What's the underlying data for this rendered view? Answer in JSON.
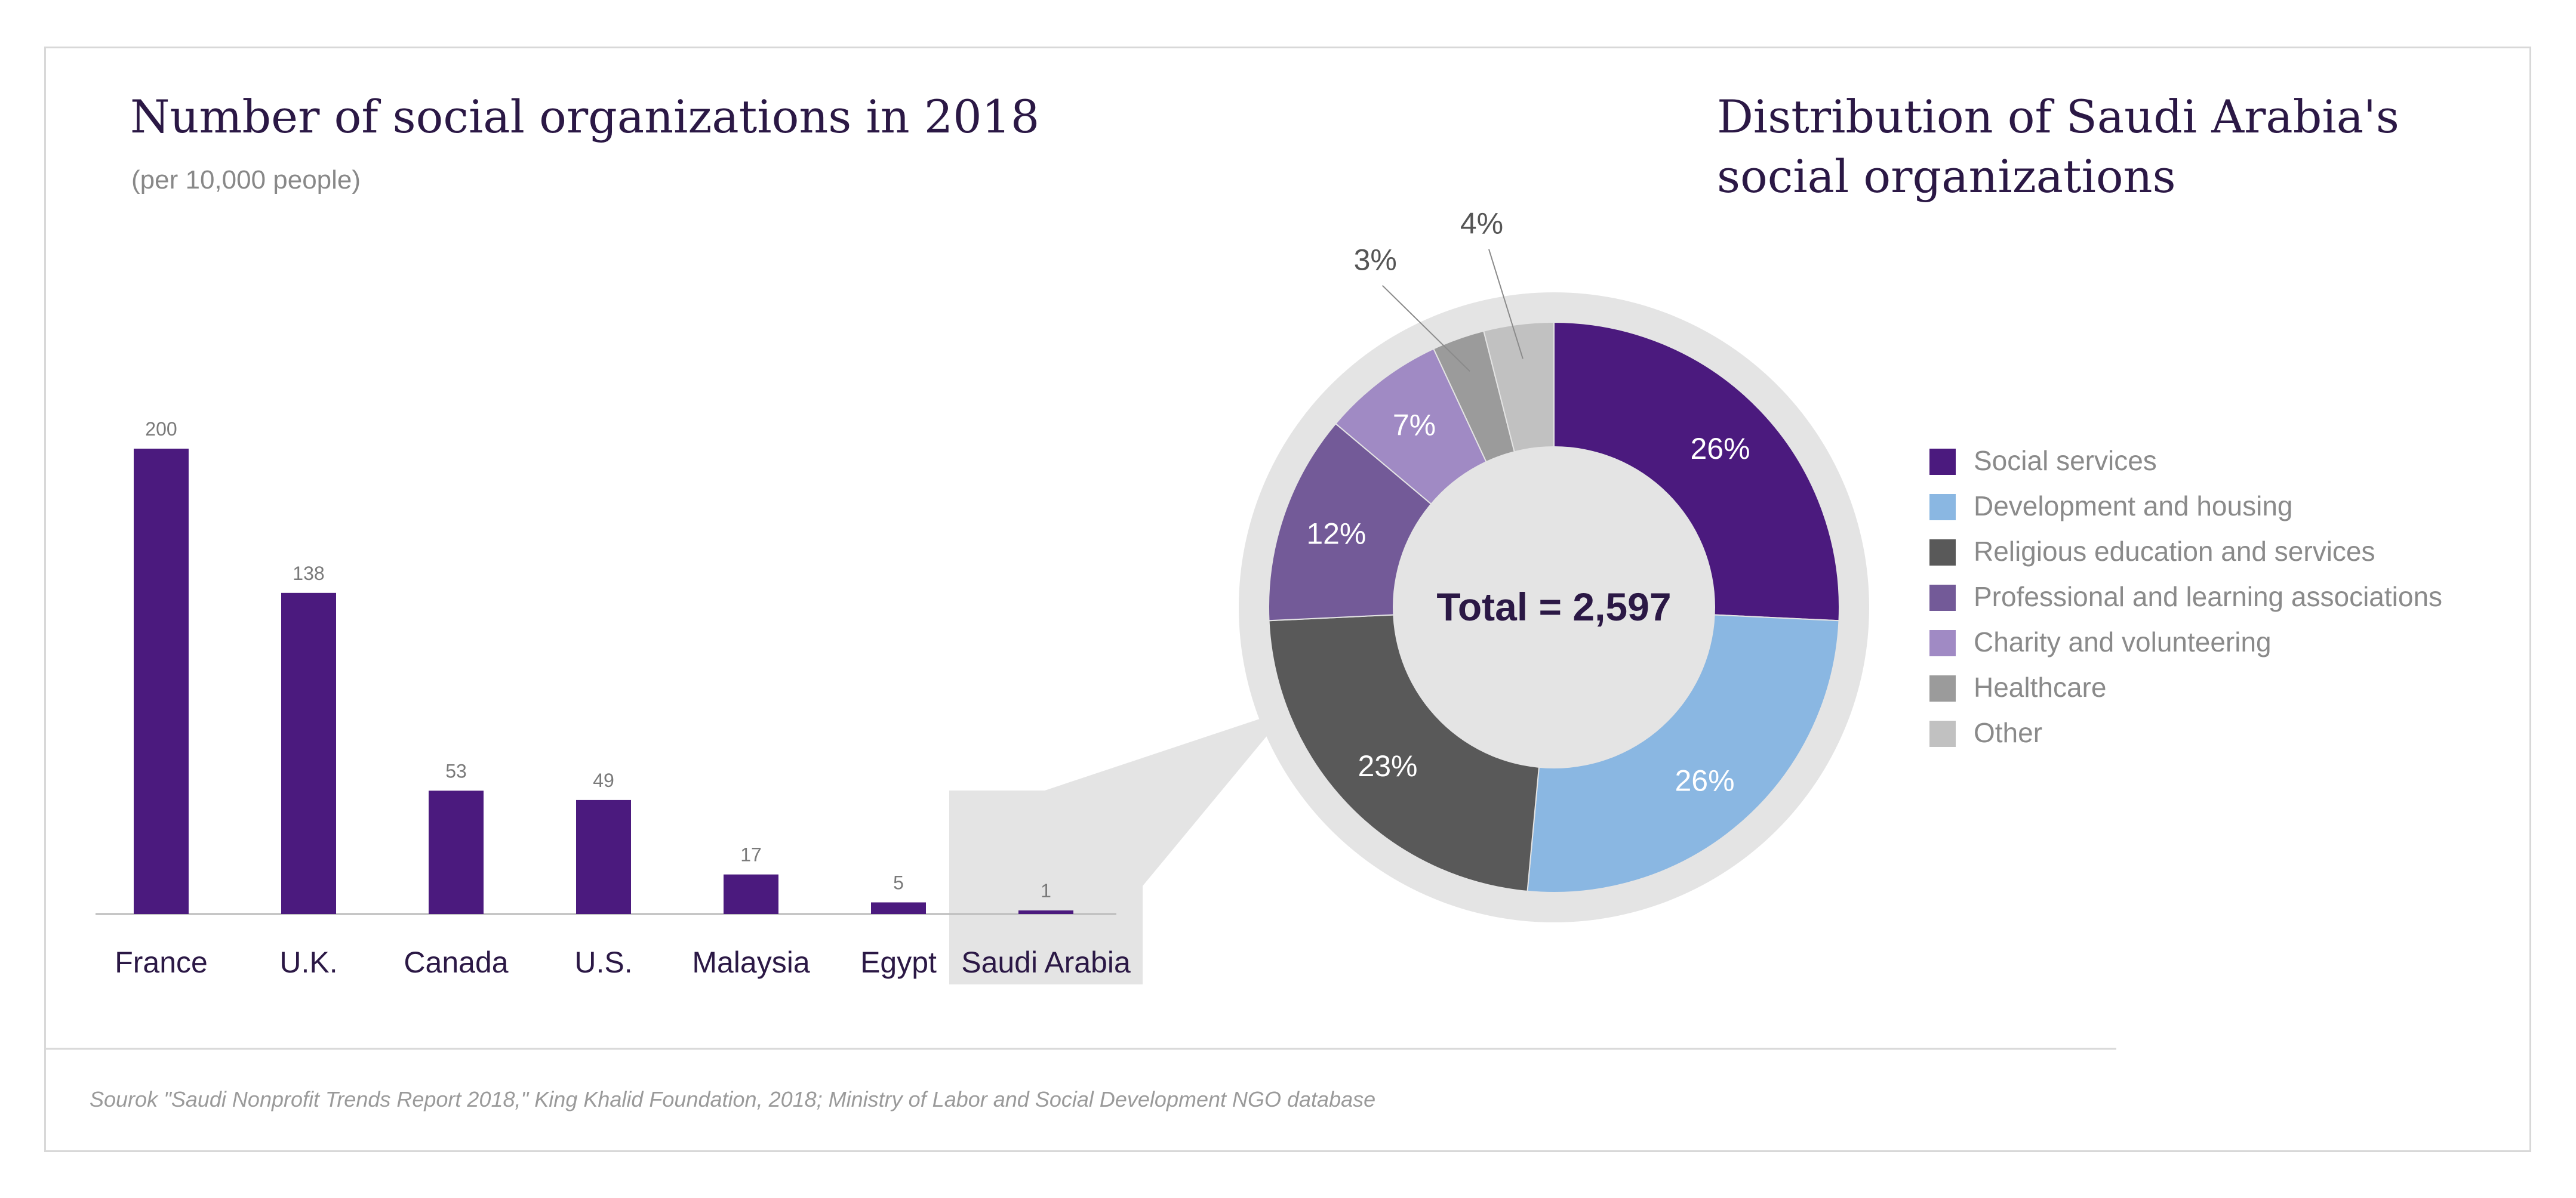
{
  "chart_data": [
    {
      "type": "bar",
      "title": "Number of social organizations in 2018",
      "subtitle": "(per 10,000 people)",
      "categories": [
        "France",
        "U.K.",
        "Canada",
        "U.S.",
        "Malaysia",
        "Egypt",
        "Saudi Arabia"
      ],
      "values": [
        200,
        138,
        53,
        49,
        17,
        5,
        1
      ],
      "ylim": [
        0,
        200
      ],
      "grid": false,
      "colors": {
        "bar": "#4b1a7e",
        "highlight": "#e4e4e4"
      }
    },
    {
      "type": "pie",
      "title_line1": "Distribution of Saudi Arabia's",
      "title_line2": "social organizations",
      "center_label": "Total = 2,597",
      "legend_position": "right",
      "slices": [
        {
          "label": "Social services",
          "value": 26,
          "display": "26%",
          "color": "#4b1a7e"
        },
        {
          "label": "Development and housing",
          "value": 26,
          "display": "26%",
          "color": "#8ab7e2"
        },
        {
          "label": "Religious education and services",
          "value": 23,
          "display": "23%",
          "color": "#595959"
        },
        {
          "label": "Professional and learning associations",
          "value": 12,
          "display": "12%",
          "color": "#735a98"
        },
        {
          "label": "Charity and volunteering",
          "value": 7,
          "display": "7%",
          "color": "#a08ac4"
        },
        {
          "label": "Healthcare",
          "value": 3,
          "display": "3%",
          "color": "#9b9b9b"
        },
        {
          "label": "Other",
          "value": 4,
          "display": "4%",
          "color": "#c1c1c1"
        }
      ]
    }
  ],
  "source": "Sourok \"Saudi Nonprofit Trends Report 2018,\" King Khalid Foundation, 2018; Ministry of Labor and Social Development NGO database"
}
